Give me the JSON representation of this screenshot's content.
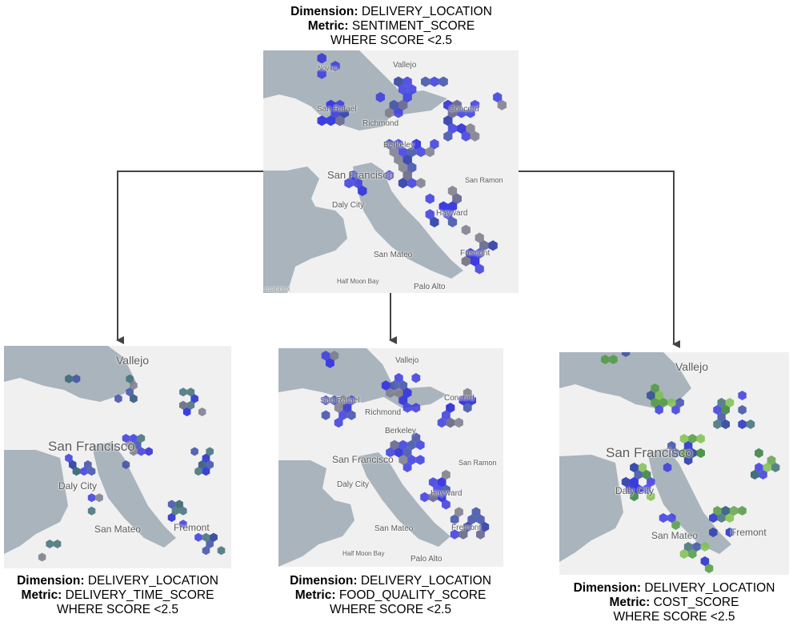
{
  "top": {
    "caption": {
      "dimension_label": "Dimension:",
      "dimension_value": "DELIVERY_LOCATION",
      "metric_label": "Metric:",
      "metric_value": "SENTIMENT_SCORE",
      "filter": "WHERE SCORE <2.5"
    },
    "map_labels": {
      "vallejo": "Vallejo",
      "novato": "Novato",
      "san_rafael": "San Rafael",
      "richmond": "Richmond",
      "concord": "Concord",
      "berkeley": "Berkeley",
      "san_francisco": "San Francisco",
      "san_ramon": "San Ramon",
      "daly_city": "Daly City",
      "hayward": "Hayward",
      "san_mateo": "San Mateo",
      "fremont": "Fremont",
      "half_moon_bay": "Half Moon Bay",
      "palo_alto": "Palo Alto",
      "mapbox": "mapbox"
    }
  },
  "left": {
    "caption": {
      "dimension_label": "Dimension:",
      "dimension_value": "DELIVERY_LOCATION",
      "metric_label": "Metric:",
      "metric_value": "DELIVERY_TIME_SCORE",
      "filter": "WHERE SCORE <2.5"
    },
    "map_labels": {
      "vallejo": "Vallejo",
      "san_francisco": "San Francisco",
      "daly_city": "Daly City",
      "san_mateo": "San Mateo",
      "fremont": "Fremont"
    }
  },
  "middle": {
    "caption": {
      "dimension_label": "Dimension:",
      "dimension_value": "DELIVERY_LOCATION",
      "metric_label": "Metric:",
      "metric_value": "FOOD_QUALITY_SCORE",
      "filter": "WHERE SCORE <2.5"
    },
    "map_labels": {
      "vallejo": "Vallejo",
      "san_rafael": "San Rafael",
      "richmond": "Richmond",
      "concord": "Concord",
      "berkeley": "Berkeley",
      "san_francisco": "San Francisco",
      "san_ramon": "San Ramon",
      "daly_city": "Daly City",
      "hayward": "Hayward",
      "san_mateo": "San Mateo",
      "fremont": "Fremont",
      "half_moon_bay": "Half Moon Bay",
      "palo_alto": "Palo Alto"
    }
  },
  "right": {
    "caption": {
      "dimension_label": "Dimension:",
      "dimension_value": "DELIVERY_LOCATION",
      "metric_label": "Metric:",
      "metric_value": "COST_SCORE",
      "filter": "WHERE SCORE <2.5"
    },
    "map_labels": {
      "vallejo": "Vallejo",
      "san_francisco": "San Francisco",
      "daly_city": "Daly City",
      "san_mateo": "San Mateo",
      "fremont": "Fremont"
    }
  },
  "colors": {
    "hex_blue": "#3a3ae0",
    "hex_blue_dark": "#3b4ea8",
    "hex_gray": "#7a7a8a",
    "hex_teal": "#3f6e78",
    "hex_green": "#4f9a3e",
    "hex_light_green": "#7fc04d",
    "water": "#a9b4bd",
    "land": "#f0f0f0",
    "connector": "#444444"
  }
}
